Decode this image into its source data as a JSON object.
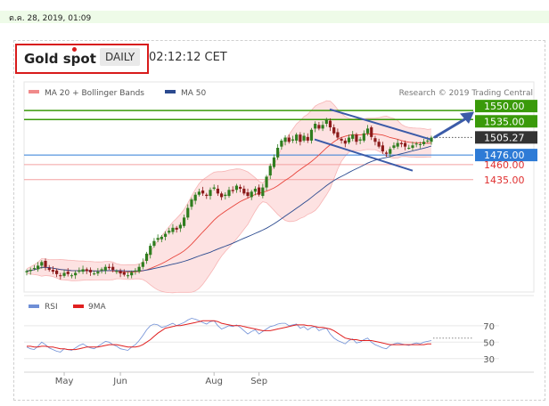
{
  "header": {
    "date": "ต.ค. 28, 2019, 01:09",
    "instrument": "Gold spot",
    "timeframe": "DAILY",
    "time": "02:12:12 CET"
  },
  "legend": {
    "ma20": "MA 20 + Bollinger Bands",
    "ma50": "MA 50",
    "credit": "Research © 2019 Trading Central"
  },
  "colors": {
    "ma20": "#e8453c",
    "ma50": "#2b4a8f",
    "resistance": "#3a9a0a",
    "support": "#e03030",
    "pivot": "#2e7bd6",
    "last": "#333333",
    "candle_up": "#2f7d1e",
    "candle_down": "#8b1a1a"
  },
  "chart_data": {
    "type": "candlestick",
    "x_labels": [
      "May",
      "Jun",
      "Aug",
      "Sep"
    ],
    "y_range": [
      1260,
      1565
    ],
    "closes": [
      1283,
      1285,
      1288,
      1292,
      1298,
      1290,
      1285,
      1282,
      1278,
      1275,
      1280,
      1278,
      1276,
      1280,
      1284,
      1286,
      1283,
      1281,
      1279,
      1282,
      1286,
      1290,
      1288,
      1285,
      1283,
      1279,
      1277,
      1276,
      1281,
      1284,
      1290,
      1298,
      1312,
      1325,
      1333,
      1338,
      1340,
      1345,
      1350,
      1355,
      1352,
      1360,
      1372,
      1388,
      1402,
      1410,
      1415,
      1412,
      1408,
      1418,
      1422,
      1412,
      1406,
      1410,
      1418,
      1416,
      1425,
      1420,
      1412,
      1408,
      1415,
      1420,
      1410,
      1422,
      1440,
      1458,
      1472,
      1488,
      1500,
      1505,
      1498,
      1502,
      1510,
      1498,
      1508,
      1500,
      1518,
      1528,
      1520,
      1526,
      1535,
      1522,
      1512,
      1505,
      1500,
      1495,
      1505,
      1510,
      1498,
      1502,
      1512,
      1520,
      1506,
      1498,
      1490,
      1482,
      1478,
      1486,
      1492,
      1496,
      1494,
      1490,
      1488,
      1492,
      1495,
      1494,
      1498,
      1500,
      1505
    ],
    "levels": [
      {
        "label": "1550.00",
        "value": 1550,
        "kind": "resistance"
      },
      {
        "label": "1535.00",
        "value": 1535,
        "kind": "resistance"
      },
      {
        "label": "1505.27",
        "value": 1505.27,
        "kind": "last"
      },
      {
        "label": "1476.00",
        "value": 1476,
        "kind": "pivot"
      },
      {
        "label": "1460.00",
        "value": 1460,
        "kind": "support"
      },
      {
        "label": "1435.00",
        "value": 1435,
        "kind": "support"
      }
    ],
    "rsi": {
      "legend": [
        "RSI",
        "9MA"
      ],
      "y_range": [
        20,
        85
      ],
      "ticks": [
        70,
        50,
        30
      ],
      "values": [
        44,
        42,
        41,
        45,
        50,
        47,
        43,
        41,
        39,
        38,
        42,
        41,
        40,
        43,
        46,
        48,
        45,
        43,
        42,
        45,
        48,
        51,
        50,
        47,
        45,
        42,
        41,
        40,
        44,
        47,
        52,
        58,
        65,
        70,
        72,
        71,
        68,
        69,
        71,
        73,
        70,
        72,
        74,
        77,
        79,
        78,
        76,
        74,
        72,
        75,
        76,
        70,
        66,
        68,
        70,
        69,
        71,
        68,
        64,
        60,
        63,
        65,
        60,
        63,
        66,
        69,
        70,
        72,
        73,
        73,
        70,
        71,
        72,
        67,
        69,
        65,
        68,
        69,
        64,
        66,
        67,
        60,
        55,
        52,
        50,
        48,
        52,
        54,
        49,
        50,
        53,
        55,
        50,
        47,
        45,
        43,
        42,
        46,
        48,
        49,
        48,
        47,
        46,
        48,
        49,
        48,
        50,
        51,
        52
      ],
      "ma": [
        45,
        45,
        44,
        44,
        45,
        45,
        44,
        44,
        43,
        42,
        42,
        41,
        41,
        41,
        42,
        43,
        44,
        44,
        44,
        44,
        45,
        46,
        47,
        47,
        47,
        46,
        45,
        44,
        44,
        44,
        45,
        47,
        50,
        53,
        57,
        61,
        64,
        67,
        68,
        69,
        70,
        70,
        71,
        72,
        73,
        74,
        75,
        76,
        76,
        76,
        76,
        75,
        73,
        72,
        71,
        70,
        70,
        70,
        69,
        68,
        67,
        66,
        65,
        64,
        64,
        64,
        65,
        66,
        67,
        68,
        69,
        70,
        71,
        71,
        71,
        70,
        70,
        69,
        68,
        68,
        67,
        66,
        64,
        61,
        58,
        55,
        54,
        53,
        53,
        52,
        52,
        52,
        52,
        51,
        50,
        49,
        48,
        47,
        47,
        47,
        47,
        47,
        47,
        47,
        47,
        47,
        47,
        48,
        48
      ]
    }
  }
}
